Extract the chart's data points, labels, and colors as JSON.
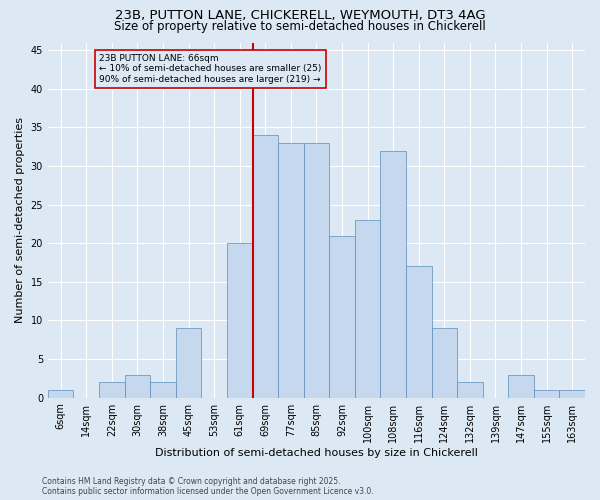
{
  "title": "23B, PUTTON LANE, CHICKERELL, WEYMOUTH, DT3 4AG",
  "subtitle": "Size of property relative to semi-detached houses in Chickerell",
  "xlabel": "Distribution of semi-detached houses by size in Chickerell",
  "ylabel": "Number of semi-detached properties",
  "categories": [
    "6sqm",
    "14sqm",
    "22sqm",
    "30sqm",
    "38sqm",
    "45sqm",
    "53sqm",
    "61sqm",
    "69sqm",
    "77sqm",
    "85sqm",
    "92sqm",
    "100sqm",
    "108sqm",
    "116sqm",
    "124sqm",
    "132sqm",
    "139sqm",
    "147sqm",
    "155sqm",
    "163sqm"
  ],
  "values": [
    1,
    0,
    2,
    3,
    2,
    9,
    0,
    20,
    34,
    33,
    33,
    21,
    23,
    32,
    17,
    9,
    2,
    0,
    3,
    1,
    1
  ],
  "bar_color": "#c5d8ed",
  "bar_edge_color": "#5b8db8",
  "background_color": "#dce9f5",
  "grid_color": "#ffffff",
  "vline_color": "#cc0000",
  "vline_x": 7.5,
  "annotation_title": "23B PUTTON LANE: 66sqm",
  "annotation_line1": "← 10% of semi-detached houses are smaller (25)",
  "annotation_line2": "90% of semi-detached houses are larger (219) →",
  "annotation_box_color": "#cc0000",
  "footer_line1": "Contains HM Land Registry data © Crown copyright and database right 2025.",
  "footer_line2": "Contains public sector information licensed under the Open Government Licence v3.0.",
  "ylim": [
    0,
    46
  ],
  "yticks": [
    0,
    5,
    10,
    15,
    20,
    25,
    30,
    35,
    40,
    45
  ],
  "title_fontsize": 9.5,
  "subtitle_fontsize": 8.5,
  "xlabel_fontsize": 8,
  "ylabel_fontsize": 8,
  "tick_fontsize": 7,
  "annotation_fontsize": 6.5,
  "footer_fontsize": 5.5
}
